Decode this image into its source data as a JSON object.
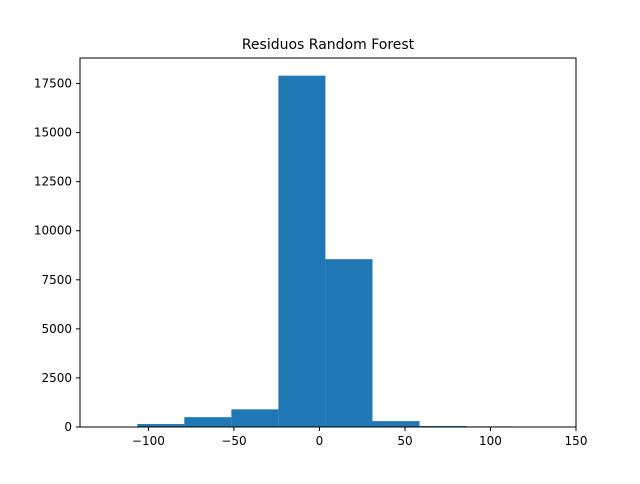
{
  "chart_data": {
    "type": "bar",
    "subtype": "histogram",
    "title": "Residuos Random Forest",
    "xlabel": "",
    "ylabel": "",
    "xlim": [
      -140,
      150
    ],
    "ylim": [
      0,
      18800
    ],
    "xticks": [
      -100,
      -50,
      0,
      50,
      100,
      150
    ],
    "xtick_labels": [
      "−100",
      "−50",
      "0",
      "50",
      "100",
      "150"
    ],
    "yticks": [
      0,
      2500,
      5000,
      7500,
      10000,
      12500,
      15000,
      17500
    ],
    "ytick_labels": [
      "0",
      "2500",
      "5000",
      "7500",
      "10000",
      "12500",
      "15000",
      "17500"
    ],
    "bins": [
      {
        "x0": -106.5,
        "x1": -79,
        "count": 150
      },
      {
        "x0": -79,
        "x1": -51.5,
        "count": 500
      },
      {
        "x0": -51.5,
        "x1": -24,
        "count": 900
      },
      {
        "x0": -24,
        "x1": 3.5,
        "count": 17900
      },
      {
        "x0": 3.5,
        "x1": 31,
        "count": 8550
      },
      {
        "x0": 31,
        "x1": 58.5,
        "count": 300
      },
      {
        "x0": 58.5,
        "x1": 86,
        "count": 50
      },
      {
        "x0": 86,
        "x1": 113.5,
        "count": 30
      }
    ],
    "grid": false,
    "bar_color": "#1f77b4"
  }
}
